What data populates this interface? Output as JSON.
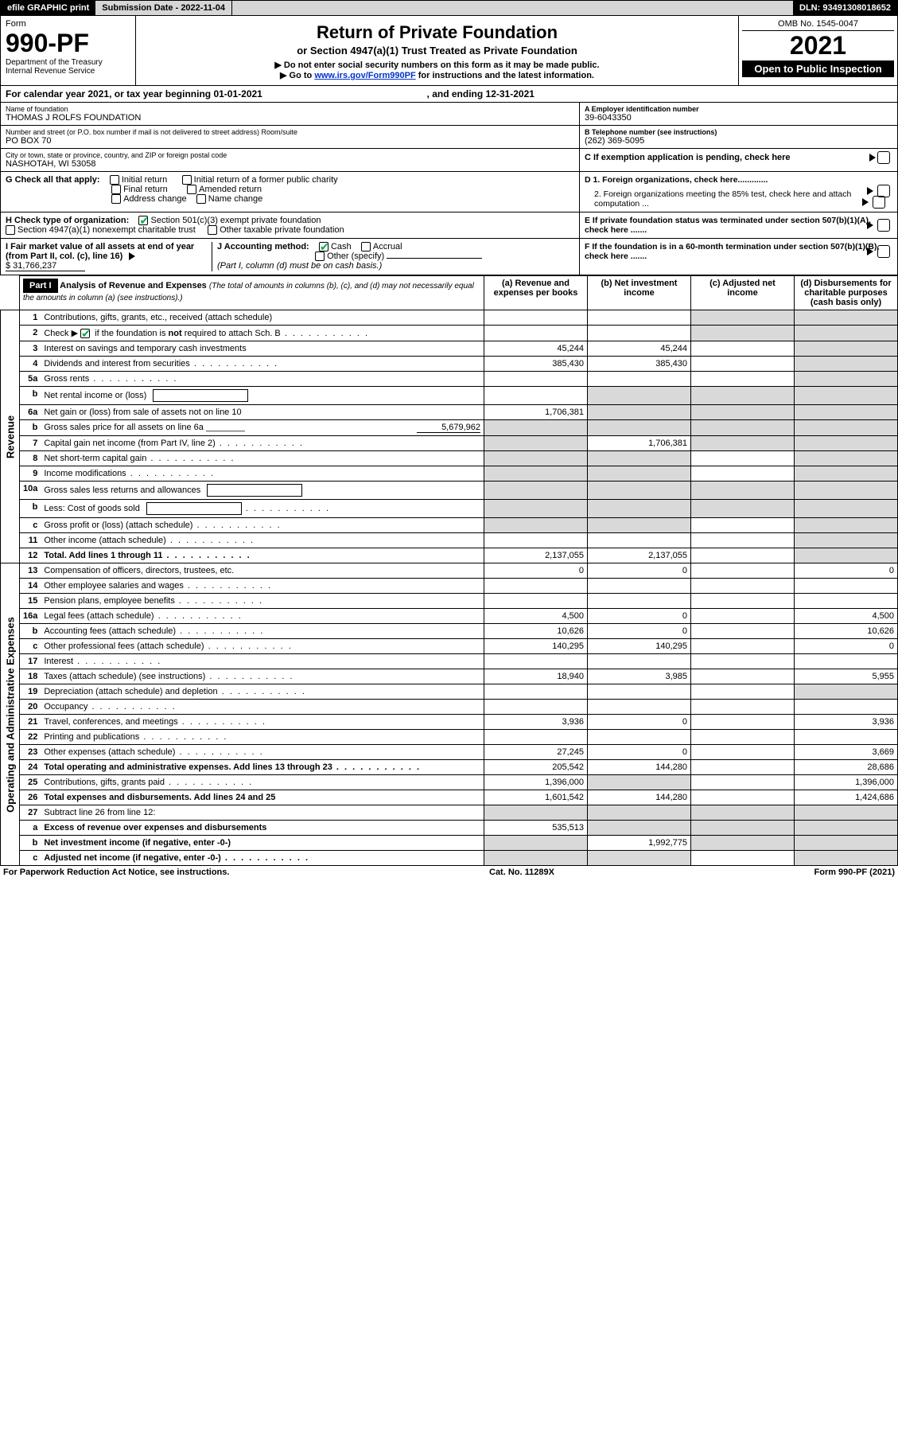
{
  "topbar": {
    "efile": "efile GRAPHIC print",
    "submission": "Submission Date - 2022-11-04",
    "dln": "DLN: 93491308018652"
  },
  "header": {
    "form_label": "Form",
    "form_number": "990-PF",
    "dept": "Department of the Treasury",
    "irs": "Internal Revenue Service",
    "title": "Return of Private Foundation",
    "subtitle": "or Section 4947(a)(1) Trust Treated as Private Foundation",
    "bullet1": "▶ Do not enter social security numbers on this form as it may be made public.",
    "bullet2_pre": "▶ Go to ",
    "bullet2_link": "www.irs.gov/Form990PF",
    "bullet2_post": " for instructions and the latest information.",
    "omb": "OMB No. 1545-0047",
    "year": "2021",
    "open": "Open to Public Inspection"
  },
  "calendar": {
    "text_pre": "For calendar year 2021, or tax year beginning ",
    "begin": "01-01-2021",
    "mid": " , and ending ",
    "end": "12-31-2021"
  },
  "ident": {
    "name_lbl": "Name of foundation",
    "name_val": "THOMAS J ROLFS FOUNDATION",
    "addr_lbl": "Number and street (or P.O. box number if mail is not delivered to street address)           Room/suite",
    "addr_val": "PO BOX 70",
    "city_lbl": "City or town, state or province, country, and ZIP or foreign postal code",
    "city_val": "NASHOTAH, WI  53058",
    "a_lbl": "A Employer identification number",
    "a_val": "39-6043350",
    "b_lbl": "B Telephone number (see instructions)",
    "b_val": "(262) 369-5095",
    "c_lbl": "C If exemption application is pending, check here"
  },
  "checks": {
    "g_lbl": "G Check all that apply:",
    "g_items": [
      "Initial return",
      "Initial return of a former public charity",
      "Final return",
      "Amended return",
      "Address change",
      "Name change"
    ],
    "h_lbl": "H Check type of organization:",
    "h1": "Section 501(c)(3) exempt private foundation",
    "h2": "Section 4947(a)(1) nonexempt charitable trust",
    "h3": "Other taxable private foundation",
    "i_lbl": "I Fair market value of all assets at end of year (from Part II, col. (c), line 16)",
    "i_val": "$  31,766,237",
    "j_lbl": "J Accounting method:",
    "j1": "Cash",
    "j2": "Accrual",
    "j3": "Other (specify)",
    "j_note": "(Part I, column (d) must be on cash basis.)",
    "d1": "D 1. Foreign organizations, check here.............",
    "d2": "2. Foreign organizations meeting the 85% test, check here and attach computation ...",
    "e": "E  If private foundation status was terminated under section 507(b)(1)(A), check here .......",
    "f": "F  If the foundation is in a 60-month termination under section 507(b)(1)(B), check here .......",
    "arrow": "▶"
  },
  "part1": {
    "label": "Part I",
    "title": "Analysis of Revenue and Expenses",
    "title_note": " (The total of amounts in columns (b), (c), and (d) may not necessarily equal the amounts in column (a) (see instructions).)",
    "col_a": "(a)   Revenue and expenses per books",
    "col_b": "(b)   Net investment income",
    "col_c": "(c)   Adjusted net income",
    "col_d": "(d)   Disbursements for charitable purposes (cash basis only)"
  },
  "side_labels": {
    "revenue": "Revenue",
    "expenses": "Operating and Administrative Expenses"
  },
  "rows": [
    {
      "n": "1",
      "d": "Contributions, gifts, grants, etc., received (attach schedule)",
      "a": "",
      "b": "",
      "c": "s",
      "ds": "s"
    },
    {
      "n": "2",
      "d": "Check ▶ ☑ if the foundation is not required to attach Sch. B",
      "a": "",
      "b": "",
      "c": "s",
      "ds": "s",
      "nobold_d": true,
      "dots": true
    },
    {
      "n": "3",
      "d": "Interest on savings and temporary cash investments",
      "a": "45,244",
      "b": "45,244",
      "c": "",
      "ds": "s"
    },
    {
      "n": "4",
      "d": "Dividends and interest from securities",
      "a": "385,430",
      "b": "385,430",
      "c": "",
      "ds": "s",
      "dots": true
    },
    {
      "n": "5a",
      "d": "Gross rents",
      "a": "",
      "b": "",
      "c": "",
      "ds": "s",
      "dots": true
    },
    {
      "n": "b",
      "d": "Net rental income or (loss)",
      "a": "",
      "b": "s",
      "c": "s",
      "ds": "s",
      "inline_blank": true
    },
    {
      "n": "6a",
      "d": "Net gain or (loss) from sale of assets not on line 10",
      "a": "1,706,381",
      "b": "s",
      "c": "s",
      "ds": "s"
    },
    {
      "n": "b",
      "d": "Gross sales price for all assets on line 6a ________",
      "a": "s",
      "b": "s",
      "c": "s",
      "ds": "s",
      "inline_val": "5,679,962"
    },
    {
      "n": "7",
      "d": "Capital gain net income (from Part IV, line 2)",
      "a": "s",
      "b": "1,706,381",
      "c": "s",
      "ds": "s",
      "dots": true
    },
    {
      "n": "8",
      "d": "Net short-term capital gain",
      "a": "s",
      "b": "s",
      "c": "",
      "ds": "s",
      "dots": true
    },
    {
      "n": "9",
      "d": "Income modifications",
      "a": "s",
      "b": "s",
      "c": "",
      "ds": "s",
      "dots": true
    },
    {
      "n": "10a",
      "d": "Gross sales less returns and allowances",
      "a": "s",
      "b": "s",
      "c": "s",
      "ds": "s",
      "inline_blank": true
    },
    {
      "n": "b",
      "d": "Less: Cost of goods sold",
      "a": "s",
      "b": "s",
      "c": "s",
      "ds": "s",
      "inline_blank": true,
      "dots": true
    },
    {
      "n": "c",
      "d": "Gross profit or (loss) (attach schedule)",
      "a": "s",
      "b": "s",
      "c": "",
      "ds": "s",
      "dots": true
    },
    {
      "n": "11",
      "d": "Other income (attach schedule)",
      "a": "",
      "b": "",
      "c": "",
      "ds": "s",
      "dots": true
    },
    {
      "n": "12",
      "d": "Total. Add lines 1 through 11",
      "a": "2,137,055",
      "b": "2,137,055",
      "c": "",
      "ds": "s",
      "bold": true,
      "dots": true
    },
    {
      "n": "13",
      "d": "Compensation of officers, directors, trustees, etc.",
      "a": "0",
      "b": "0",
      "c": "",
      "ds": "0",
      "sec": "exp"
    },
    {
      "n": "14",
      "d": "Other employee salaries and wages",
      "a": "",
      "b": "",
      "c": "",
      "ds": "",
      "sec": "exp",
      "dots": true
    },
    {
      "n": "15",
      "d": "Pension plans, employee benefits",
      "a": "",
      "b": "",
      "c": "",
      "ds": "",
      "sec": "exp",
      "dots": true
    },
    {
      "n": "16a",
      "d": "Legal fees (attach schedule)",
      "a": "4,500",
      "b": "0",
      "c": "",
      "ds": "4,500",
      "sec": "exp",
      "dots": true
    },
    {
      "n": "b",
      "d": "Accounting fees (attach schedule)",
      "a": "10,626",
      "b": "0",
      "c": "",
      "ds": "10,626",
      "sec": "exp",
      "dots": true
    },
    {
      "n": "c",
      "d": "Other professional fees (attach schedule)",
      "a": "140,295",
      "b": "140,295",
      "c": "",
      "ds": "0",
      "sec": "exp",
      "dots": true
    },
    {
      "n": "17",
      "d": "Interest",
      "a": "",
      "b": "",
      "c": "",
      "ds": "",
      "sec": "exp",
      "dots": true
    },
    {
      "n": "18",
      "d": "Taxes (attach schedule) (see instructions)",
      "a": "18,940",
      "b": "3,985",
      "c": "",
      "ds": "5,955",
      "sec": "exp",
      "dots": true
    },
    {
      "n": "19",
      "d": "Depreciation (attach schedule) and depletion",
      "a": "",
      "b": "",
      "c": "",
      "ds": "s",
      "sec": "exp",
      "dots": true
    },
    {
      "n": "20",
      "d": "Occupancy",
      "a": "",
      "b": "",
      "c": "",
      "ds": "",
      "sec": "exp",
      "dots": true
    },
    {
      "n": "21",
      "d": "Travel, conferences, and meetings",
      "a": "3,936",
      "b": "0",
      "c": "",
      "ds": "3,936",
      "sec": "exp",
      "dots": true
    },
    {
      "n": "22",
      "d": "Printing and publications",
      "a": "",
      "b": "",
      "c": "",
      "ds": "",
      "sec": "exp",
      "dots": true
    },
    {
      "n": "23",
      "d": "Other expenses (attach schedule)",
      "a": "27,245",
      "b": "0",
      "c": "",
      "ds": "3,669",
      "sec": "exp",
      "dots": true
    },
    {
      "n": "24",
      "d": "Total operating and administrative expenses. Add lines 13 through 23",
      "a": "205,542",
      "b": "144,280",
      "c": "",
      "ds": "28,686",
      "sec": "exp",
      "bold": true,
      "dots": true
    },
    {
      "n": "25",
      "d": "Contributions, gifts, grants paid",
      "a": "1,396,000",
      "b": "s",
      "c": "",
      "ds": "1,396,000",
      "sec": "exp",
      "dots": true
    },
    {
      "n": "26",
      "d": "Total expenses and disbursements. Add lines 24 and 25",
      "a": "1,601,542",
      "b": "144,280",
      "c": "",
      "ds": "1,424,686",
      "sec": "exp",
      "bold": true
    },
    {
      "n": "27",
      "d": "Subtract line 26 from line 12:",
      "a": "s",
      "b": "s",
      "c": "s",
      "ds": "s",
      "sec": "bot"
    },
    {
      "n": "a",
      "d": "Excess of revenue over expenses and disbursements",
      "a": "535,513",
      "b": "s",
      "c": "s",
      "ds": "s",
      "sec": "bot",
      "bold": true
    },
    {
      "n": "b",
      "d": "Net investment income (if negative, enter -0-)",
      "a": "s",
      "b": "1,992,775",
      "c": "s",
      "ds": "s",
      "sec": "bot",
      "bold": true
    },
    {
      "n": "c",
      "d": "Adjusted net income (if negative, enter -0-)",
      "a": "s",
      "b": "s",
      "c": "",
      "ds": "s",
      "sec": "bot",
      "bold": true,
      "dots": true
    }
  ],
  "footer": {
    "left": "For Paperwork Reduction Act Notice, see instructions.",
    "mid": "Cat. No. 11289X",
    "right": "Form 990-PF (2021)"
  },
  "colors": {
    "grey": "#d6d6d6",
    "shade": "#d9d9d9",
    "link": "#0033cc",
    "check": "#06a94e"
  }
}
